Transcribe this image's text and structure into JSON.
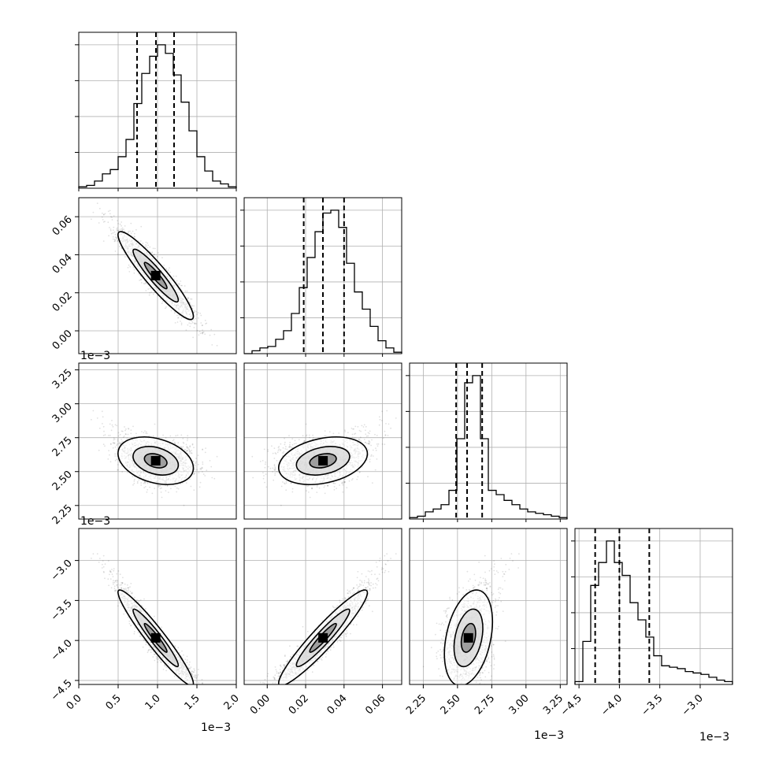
{
  "chart_data": {
    "type": "corner",
    "n_params": 4,
    "params": [
      {
        "range": [
          0.0,
          2.0
        ],
        "ticks": [
          "0.0",
          "0.5",
          "1.0",
          "1.5",
          "2.0"
        ],
        "tick_values": [
          0.0,
          0.5,
          1.0,
          1.5,
          2.0
        ],
        "offset": "1e−3",
        "quantiles": [
          0.74,
          0.98,
          1.21
        ],
        "hist": [
          0.01,
          0.02,
          0.05,
          0.1,
          0.13,
          0.22,
          0.34,
          0.59,
          0.8,
          0.92,
          1.0,
          0.94,
          0.79,
          0.6,
          0.4,
          0.22,
          0.12,
          0.05,
          0.03,
          0.01
        ]
      },
      {
        "range": [
          -0.012,
          0.07
        ],
        "ticks": [
          "0.00",
          "0.02",
          "0.04",
          "0.06"
        ],
        "tick_values": [
          0.0,
          0.02,
          0.04,
          0.06
        ],
        "offset": "",
        "quantiles": [
          0.019,
          0.029,
          0.04
        ],
        "hist": [
          0.0,
          0.02,
          0.04,
          0.05,
          0.1,
          0.16,
          0.28,
          0.46,
          0.67,
          0.85,
          0.98,
          1.0,
          0.88,
          0.63,
          0.43,
          0.31,
          0.19,
          0.09,
          0.04,
          0.01
        ]
      },
      {
        "range": [
          2.15,
          3.3
        ],
        "ticks": [
          "2.25",
          "2.50",
          "2.75",
          "3.00",
          "3.25"
        ],
        "tick_values": [
          2.25,
          2.5,
          2.75,
          3.0,
          3.25
        ],
        "offset": "1e−3",
        "quantiles": [
          2.49,
          2.57,
          2.68
        ],
        "hist": [
          0.01,
          0.02,
          0.05,
          0.07,
          0.1,
          0.2,
          0.56,
          0.95,
          1.0,
          0.56,
          0.2,
          0.17,
          0.13,
          0.1,
          0.07,
          0.05,
          0.04,
          0.03,
          0.02,
          0.01
        ]
      },
      {
        "range": [
          -4.55,
          -2.6
        ],
        "ticks": [
          "−4.5",
          "−4.0",
          "−3.5",
          "−3.0"
        ],
        "tick_values": [
          -4.5,
          -4.0,
          -3.5,
          -3.0
        ],
        "offset": "1e−3",
        "quantiles": [
          -4.3,
          -4.0,
          -3.63
        ],
        "hist": [
          0.02,
          0.3,
          0.69,
          0.85,
          1.0,
          0.85,
          0.76,
          0.57,
          0.45,
          0.33,
          0.2,
          0.13,
          0.12,
          0.11,
          0.09,
          0.08,
          0.07,
          0.05,
          0.03,
          0.02
        ]
      }
    ],
    "hist_y_ticks": [
      0.25,
      0.5,
      0.75,
      1.0
    ],
    "axis_offsets_left": [
      "1e−3",
      "1e−3"
    ],
    "grid": true,
    "contours": true,
    "sample_points": 1600
  }
}
